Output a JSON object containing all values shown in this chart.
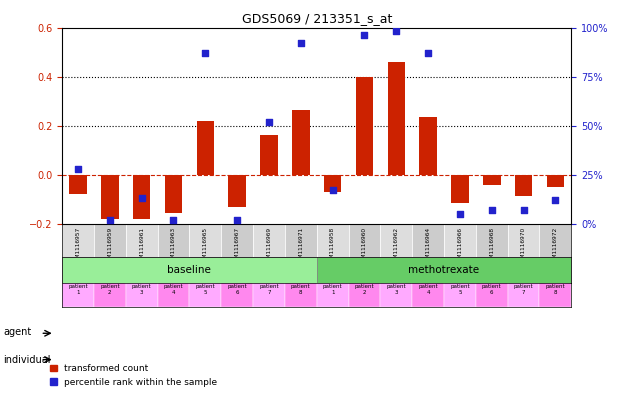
{
  "title": "GDS5069 / 213351_s_at",
  "samples": [
    "GSM1116957",
    "GSM1116959",
    "GSM1116961",
    "GSM1116963",
    "GSM1116965",
    "GSM1116967",
    "GSM1116969",
    "GSM1116971",
    "GSM1116958",
    "GSM1116960",
    "GSM1116962",
    "GSM1116964",
    "GSM1116966",
    "GSM1116968",
    "GSM1116970",
    "GSM1116972"
  ],
  "bar_values": [
    -0.08,
    -0.18,
    -0.18,
    -0.155,
    0.22,
    -0.13,
    0.16,
    0.265,
    -0.07,
    0.4,
    0.46,
    0.235,
    -0.115,
    -0.04,
    -0.085,
    -0.05
  ],
  "scatter_values": [
    0.28,
    0.02,
    0.13,
    0.02,
    0.87,
    0.02,
    0.52,
    0.92,
    0.17,
    0.96,
    0.98,
    0.87,
    0.05,
    0.07,
    0.07,
    0.12
  ],
  "bar_color": "#cc2200",
  "scatter_color": "#2222cc",
  "bar_ylim": [
    -0.2,
    0.6
  ],
  "scatter_ylim": [
    0.0,
    1.0
  ],
  "bar_yticks": [
    -0.2,
    0.0,
    0.2,
    0.4,
    0.6
  ],
  "scatter_yticks": [
    0.0,
    0.25,
    0.5,
    0.75,
    1.0
  ],
  "scatter_yticklabels": [
    "0%",
    "25%",
    "50%",
    "75%",
    "100%"
  ],
  "hline_y": 0.0,
  "dotted_lines": [
    0.2,
    0.4
  ],
  "agent_groups": [
    {
      "label": "baseline",
      "start": 0,
      "end": 8,
      "color": "#99ee99"
    },
    {
      "label": "methotrexate",
      "start": 8,
      "end": 16,
      "color": "#66cc66"
    }
  ],
  "individual_colors": [
    "#ffaaff",
    "#ffaaff",
    "#ffaaff",
    "#ffaaff",
    "#ffaaff",
    "#ff88ff",
    "#ff88ff",
    "#ff88ff",
    "#ffaaff",
    "#ffaaff",
    "#ffaaff",
    "#ffaaff",
    "#ffaaff",
    "#ffaaff",
    "#ff88ff",
    "#ff88ff"
  ],
  "individual_labels": [
    "patient\n1",
    "patient\n2",
    "patient\n3",
    "patient\n4",
    "patient\n5",
    "patient\n6",
    "patient\n7",
    "patient\n8",
    "patient\n1",
    "patient\n2",
    "patient\n3",
    "patient\n4",
    "patient\n5",
    "patient\n6",
    "patient\n7",
    "patient\n8"
  ],
  "legend_bar_label": "transformed count",
  "legend_scatter_label": "percentile rank within the sample",
  "xlabel_agent": "agent",
  "xlabel_individual": "individual",
  "bg_color": "#f0f0f0",
  "xticklabel_bg": "#cccccc"
}
